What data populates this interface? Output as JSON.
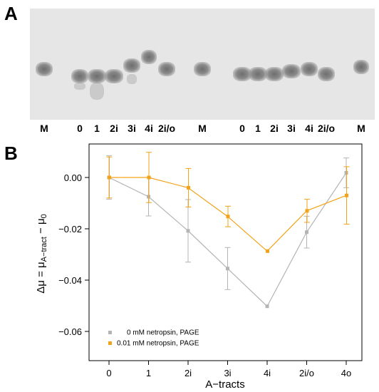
{
  "panels": {
    "a": "A",
    "b": "B"
  },
  "gel": {
    "lanes": [
      "M",
      "0",
      "1",
      "2i",
      "3i",
      "4i",
      "2i/o",
      "M",
      "0",
      "1",
      "2i",
      "3i",
      "4i",
      "2i/o",
      "M"
    ]
  },
  "colors": {
    "series0": "#b4b4b4",
    "series1": "#f2a319"
  },
  "chart_data": {
    "type": "line",
    "categories": [
      "0",
      "1",
      "2i",
      "3i",
      "4i",
      "2i/o",
      "4o"
    ],
    "ylabel": "Δμ = μA−tract − μ0",
    "xlabel": "A−tracts",
    "ylim": [
      -0.07,
      0.01
    ],
    "yticks": [
      "0.00",
      "−0.02",
      "−0.04",
      "−0.06"
    ],
    "ytick_values": [
      0.0,
      -0.02,
      -0.04,
      -0.06
    ],
    "grid": false,
    "legend_position": "bottom-left",
    "series": [
      {
        "name": "0 mM netropsin, PAGE",
        "values": [
          0.0,
          -0.0075,
          -0.0208,
          -0.0355,
          -0.0502,
          -0.0213,
          0.0018
        ],
        "errors": [
          0.0085,
          0.0075,
          0.0122,
          0.0082,
          0.0,
          0.0062,
          0.0058
        ]
      },
      {
        "name": "0.01 mM netropsin, PAGE",
        "values": [
          0.0,
          0.0,
          -0.004,
          -0.0152,
          -0.0287,
          -0.013,
          -0.007
        ],
        "errors": [
          0.008,
          0.0098,
          0.0075,
          0.004,
          0.0,
          0.0045,
          0.0112
        ]
      }
    ]
  }
}
